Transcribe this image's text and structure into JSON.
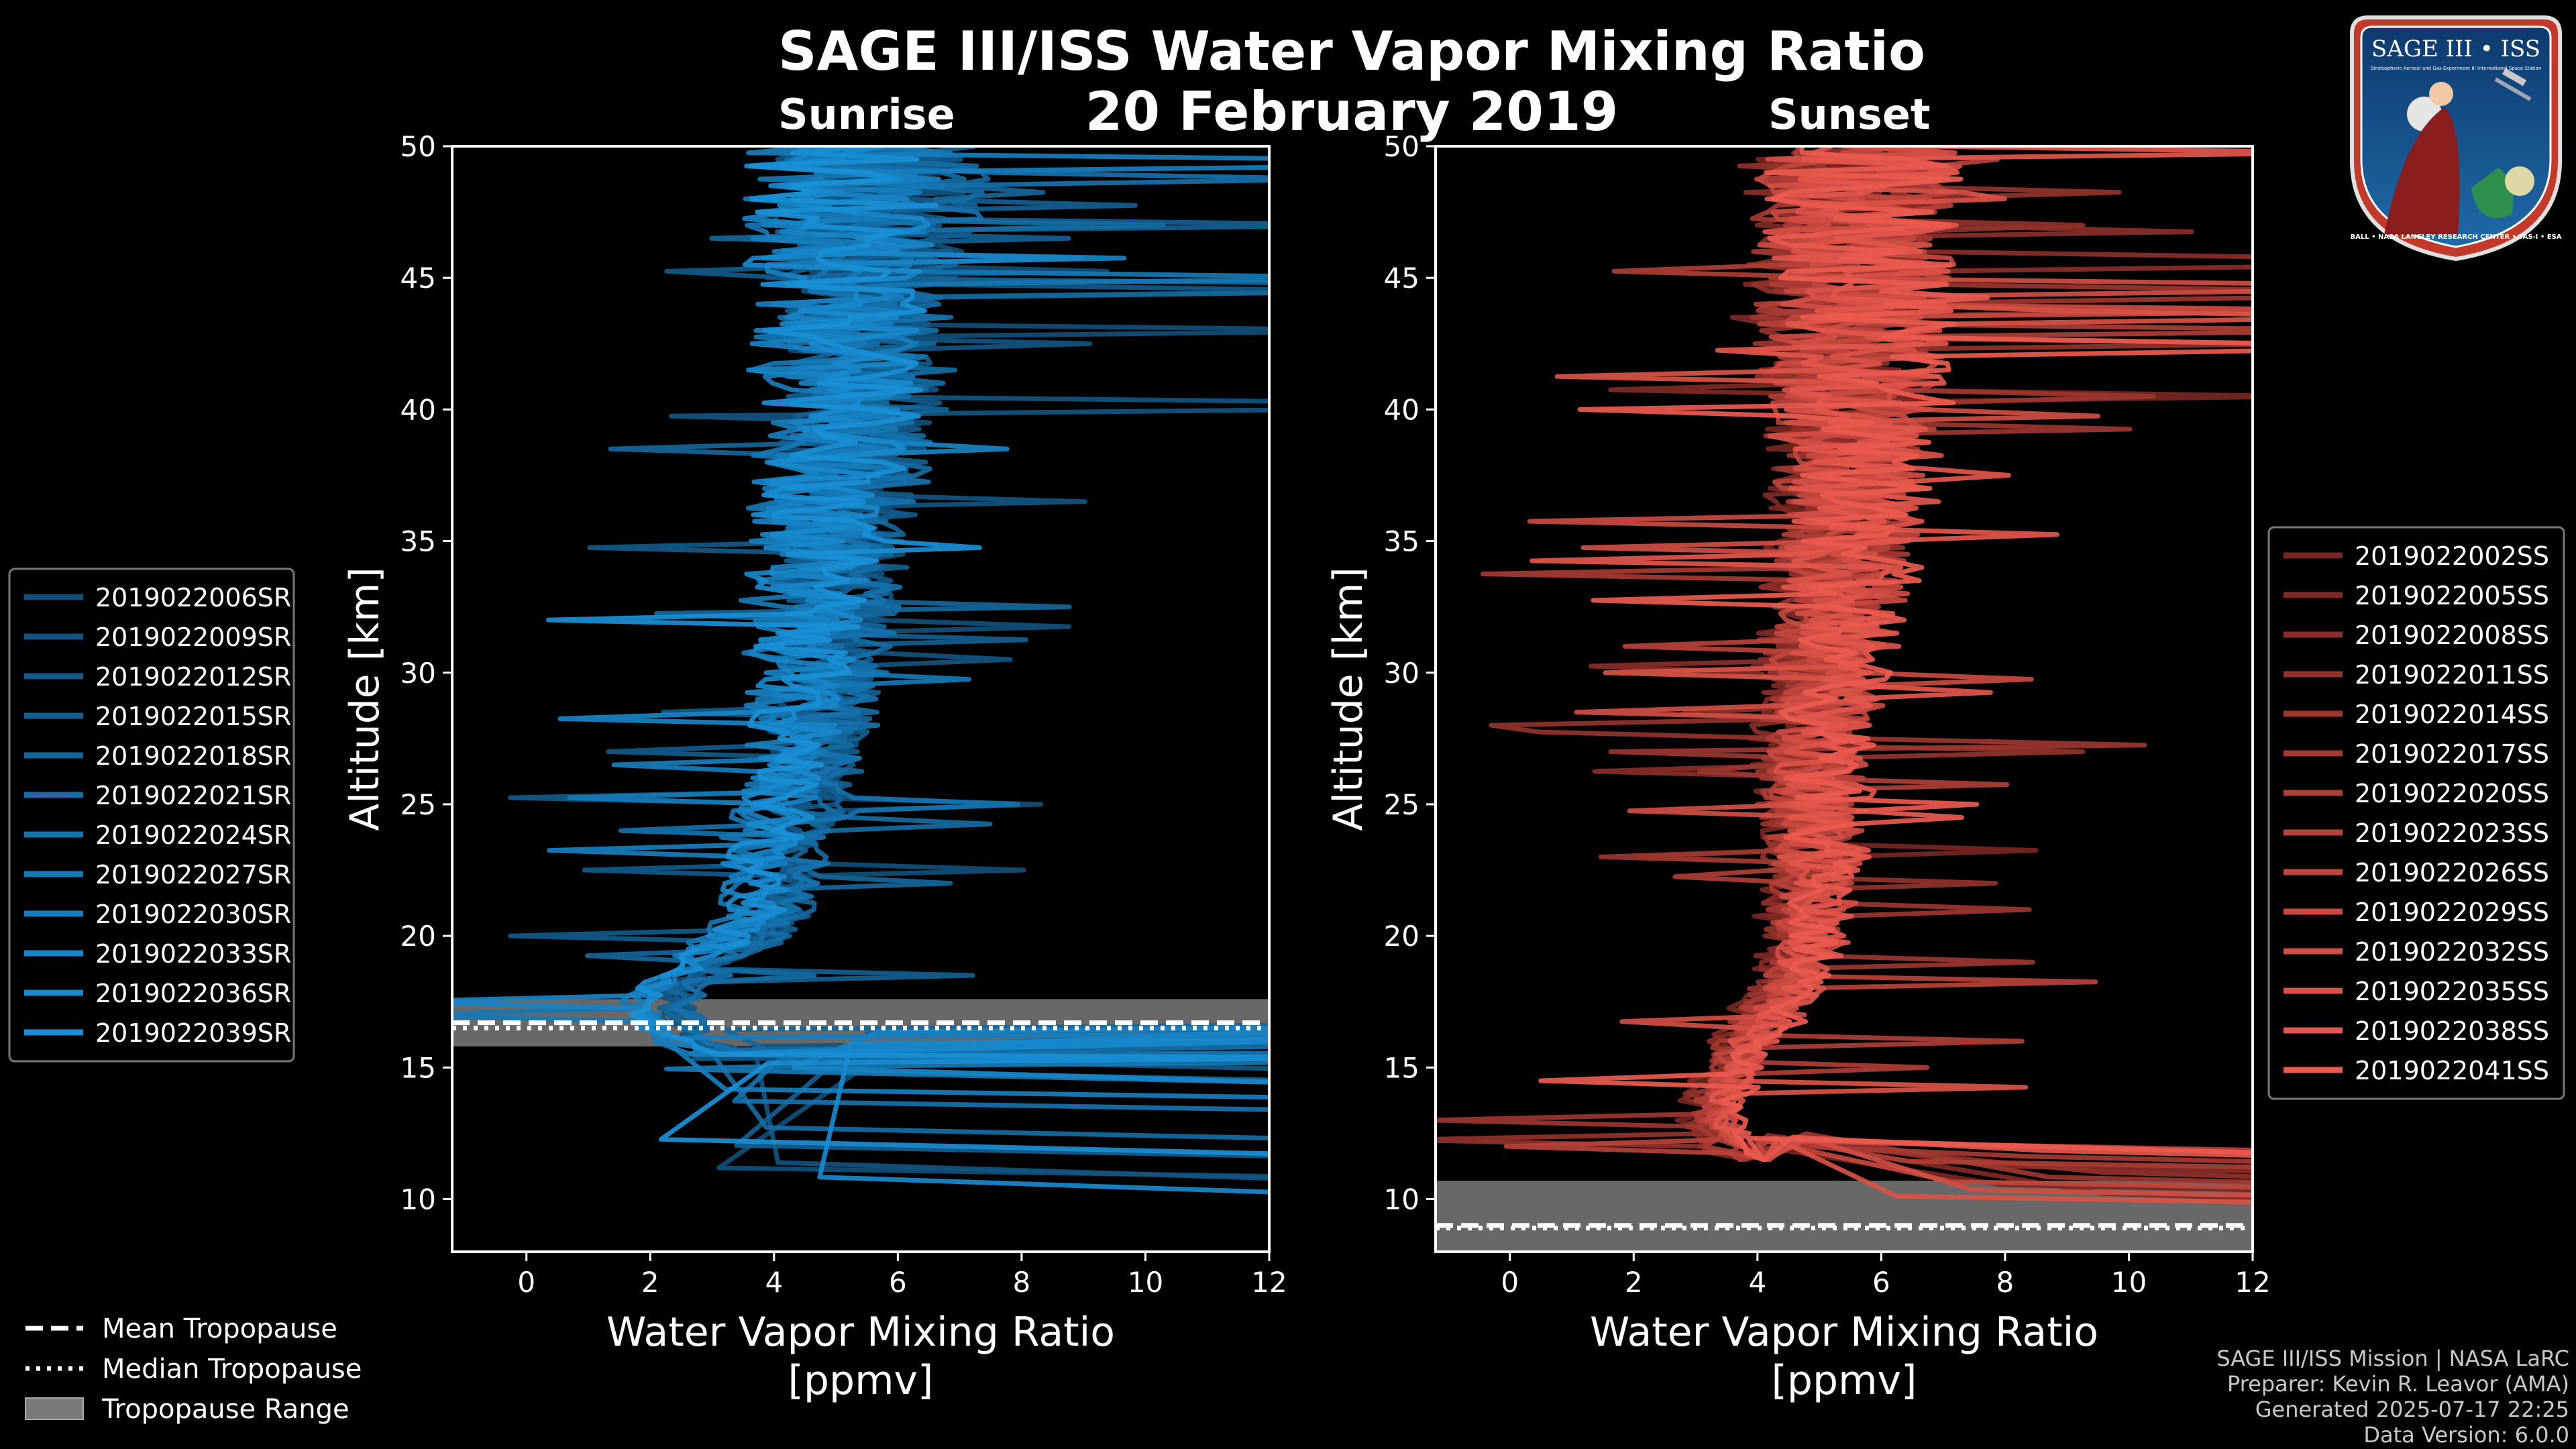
{
  "title": "SAGE III/ISS Water Vapor Mixing Ratio",
  "date": "20 February 2019",
  "subtitle_left": "Sunrise",
  "subtitle_right": "Sunset",
  "footer": {
    "line1": "SAGE III/ISS Mission | NASA LaRC",
    "line2": "Preparer: Kevin R. Leavor (AMA)",
    "line3": "Generated 2025-07-17 22:25",
    "line4": "Data Version: 6.0.0"
  },
  "logo": {
    "top_text": "SAGE III • ISS",
    "small_text": "Stratospheric Aerosol and Gas Experiment III  International Space Station",
    "ring_text": "BALL • NASA LANGLEY RESEARCH CENTER • TAS-I • ESA"
  },
  "colors": {
    "sunrise": "#1a8fd6",
    "sunset": "#ec5a4e",
    "tropopause_range": "#7a7a7a"
  },
  "chart_data": [
    {
      "type": "line",
      "panel": "Sunrise",
      "xlabel": "Water Vapor Mixing Ratio",
      "xlabel2": "[ppmv]",
      "ylabel": "Altitude [km]",
      "xlim": [
        -1.2,
        12
      ],
      "ylim": [
        8,
        50
      ],
      "xticks": [
        0,
        2,
        4,
        6,
        8,
        10,
        12
      ],
      "yticks": [
        10,
        15,
        20,
        25,
        30,
        35,
        40,
        45,
        50
      ],
      "legend_position": "left",
      "series_names": [
        "2019022006SR",
        "2019022009SR",
        "2019022012SR",
        "2019022015SR",
        "2019022018SR",
        "2019022021SR",
        "2019022024SR",
        "2019022027SR",
        "2019022030SR",
        "2019022033SR",
        "2019022036SR",
        "2019022039SR"
      ],
      "profile_mean": [
        [
          15.5,
          3.2
        ],
        [
          16,
          2.7
        ],
        [
          17,
          2.2
        ],
        [
          18,
          2.3
        ],
        [
          19,
          2.9
        ],
        [
          20,
          3.6
        ],
        [
          21,
          4.0
        ],
        [
          22,
          4.0
        ],
        [
          23,
          4.0
        ],
        [
          24,
          4.2
        ],
        [
          25,
          4.4
        ],
        [
          27,
          4.5
        ],
        [
          30,
          4.7
        ],
        [
          33,
          4.8
        ],
        [
          36,
          5.0
        ],
        [
          40,
          5.3
        ],
        [
          44,
          5.2
        ],
        [
          48,
          5.5
        ],
        [
          50,
          5.5
        ]
      ],
      "tropopause": {
        "mean": 16.7,
        "median": 16.5,
        "range": [
          15.8,
          17.6
        ]
      }
    },
    {
      "type": "line",
      "panel": "Sunset",
      "xlabel": "Water Vapor Mixing Ratio",
      "xlabel2": "[ppmv]",
      "ylabel": "Altitude [km]",
      "xlim": [
        -1.2,
        12
      ],
      "ylim": [
        8,
        50
      ],
      "xticks": [
        0,
        2,
        4,
        6,
        8,
        10,
        12
      ],
      "yticks": [
        10,
        15,
        20,
        25,
        30,
        35,
        40,
        45,
        50
      ],
      "legend_position": "right",
      "series_names": [
        "2019022002SS",
        "2019022005SS",
        "2019022008SS",
        "2019022011SS",
        "2019022014SS",
        "2019022017SS",
        "2019022020SS",
        "2019022023SS",
        "2019022026SS",
        "2019022029SS",
        "2019022032SS",
        "2019022035SS",
        "2019022038SS",
        "2019022041SS"
      ],
      "profile_mean": [
        [
          11.5,
          4.0
        ],
        [
          12,
          3.5
        ],
        [
          13,
          3.3
        ],
        [
          14,
          3.4
        ],
        [
          15,
          3.6
        ],
        [
          16,
          3.8
        ],
        [
          17,
          4.2
        ],
        [
          18,
          4.5
        ],
        [
          19,
          4.7
        ],
        [
          20,
          4.8
        ],
        [
          22,
          4.9
        ],
        [
          25,
          4.9
        ],
        [
          28,
          5.0
        ],
        [
          30,
          5.1
        ],
        [
          33,
          5.3
        ],
        [
          36,
          5.5
        ],
        [
          40,
          5.6
        ],
        [
          44,
          5.5
        ],
        [
          48,
          5.6
        ],
        [
          50,
          5.6
        ]
      ],
      "tropopause": {
        "mean": 9.0,
        "median": 8.9,
        "range": [
          8.0,
          10.7
        ]
      }
    }
  ],
  "bottom_legend": {
    "mean": "Mean Tropopause",
    "median": "Median Tropopause",
    "range": "Tropopause Range"
  }
}
